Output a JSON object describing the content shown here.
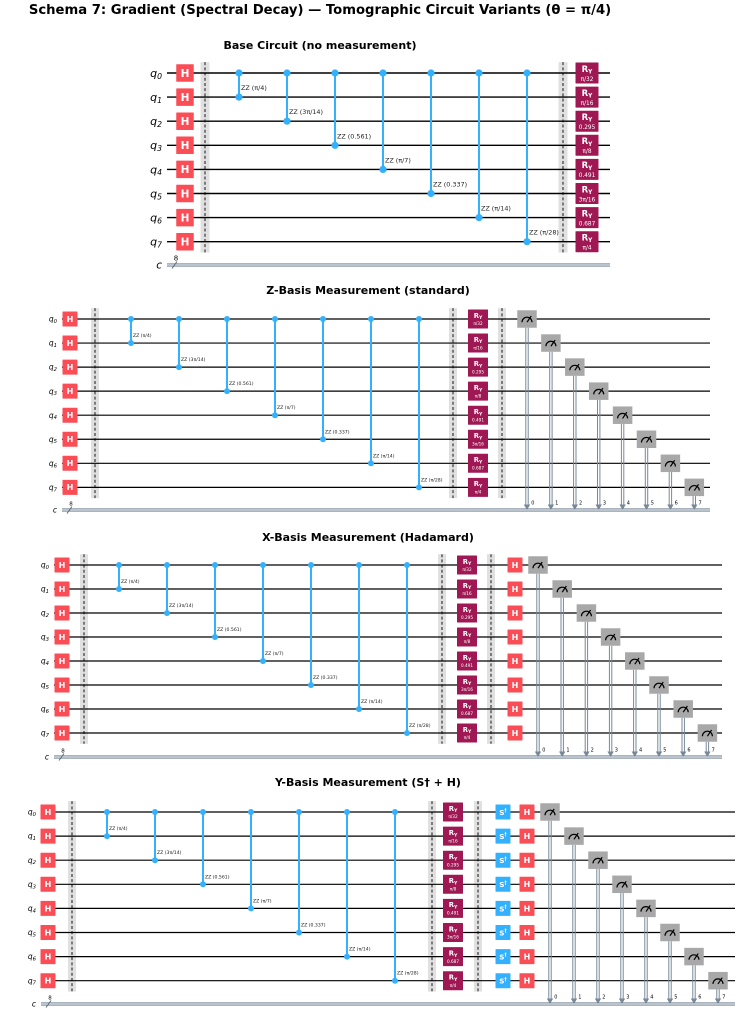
{
  "main_title": "Schema 7: Gradient (Spectral Decay) — Tomographic Circuit Variants (θ = π/4)",
  "colors": {
    "h_gate": "#FA4D56",
    "two_qubit": "#33B1FF",
    "ry_gate": "#9F1853",
    "sdg_gate": "#33B1FF",
    "measure_gate": "#A8A8A8",
    "classical_wire": "#778899",
    "quantum_wire": "#000000",
    "gate_text": "#FFFFFF",
    "background": "#FFFFFF"
  },
  "registers": {
    "qubit_prefix": "q",
    "qubit_indices": [
      "0",
      "1",
      "2",
      "3",
      "4",
      "5",
      "6",
      "7"
    ],
    "classical_label": "c",
    "classical_size": "8",
    "classical_bit_labels": [
      "0",
      "1",
      "2",
      "3",
      "4",
      "5",
      "6",
      "7"
    ]
  },
  "gates": {
    "hadamard_label": "H",
    "sdg_label": "S†",
    "ry_label": "R",
    "ry_sub": "Y",
    "zz_gates": [
      {
        "q1": 0,
        "q2": 1,
        "label": "ZZ (π/4)"
      },
      {
        "q1": 0,
        "q2": 2,
        "label": "ZZ (3π/14)"
      },
      {
        "q1": 0,
        "q2": 3,
        "label": "ZZ (0.561)"
      },
      {
        "q1": 0,
        "q2": 4,
        "label": "ZZ (π/7)"
      },
      {
        "q1": 0,
        "q2": 5,
        "label": "ZZ (0.337)"
      },
      {
        "q1": 0,
        "q2": 6,
        "label": "ZZ (π/14)"
      },
      {
        "q1": 0,
        "q2": 7,
        "label": "ZZ (π/28)"
      }
    ],
    "ry_angles": [
      "π/32",
      "π/16",
      "0.295",
      "π/8",
      "0.491",
      "3π/16",
      "0.687",
      "π/4"
    ]
  },
  "circuits": [
    {
      "id": "base",
      "title": "Base Circuit (no measurement)",
      "initial_column": "H",
      "post_rotation_columns": [],
      "measured": false
    },
    {
      "id": "z",
      "title": "Z-Basis Measurement (standard)",
      "initial_column": "H",
      "post_rotation_columns": [],
      "measured": true
    },
    {
      "id": "x",
      "title": "X-Basis Measurement (Hadamard)",
      "initial_column": "H",
      "post_rotation_columns": [
        "H"
      ],
      "measured": true
    },
    {
      "id": "y",
      "title": "Y-Basis Measurement (S† + H)",
      "initial_column": "H",
      "post_rotation_columns": [
        "S†",
        "H"
      ],
      "measured": true
    }
  ]
}
